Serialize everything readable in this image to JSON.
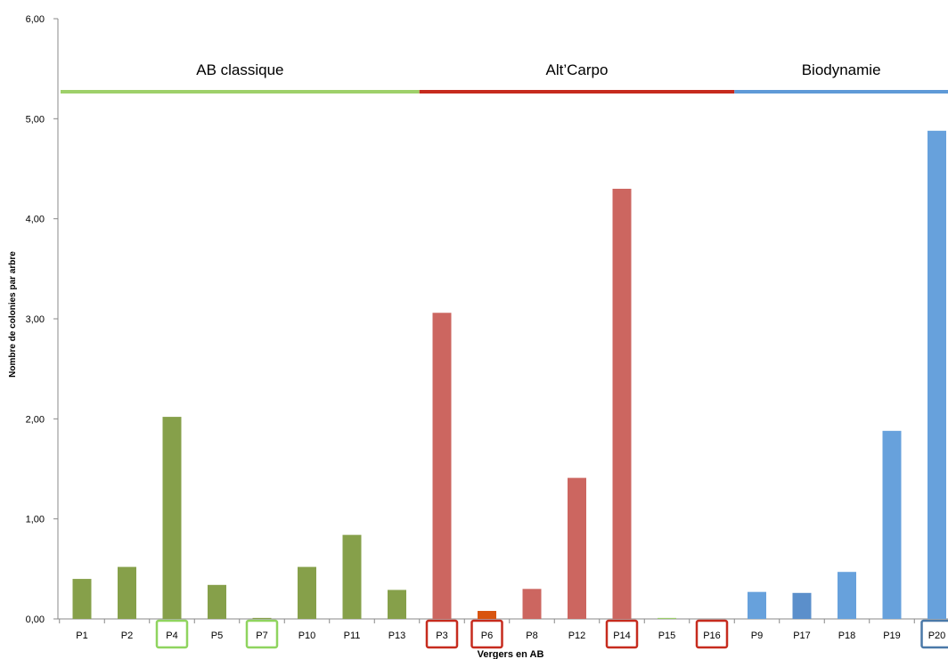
{
  "chart_data": {
    "type": "bar",
    "xlabel": "Vergers en AB",
    "ylabel": "Nombre de colonies par arbre",
    "ylim": [
      0,
      6
    ],
    "yticks": [
      "0,00",
      "1,00",
      "2,00",
      "3,00",
      "4,00",
      "5,00",
      "6,00"
    ],
    "categories": [
      "P1",
      "P2",
      "P4",
      "P5",
      "P7",
      "P10",
      "P11",
      "P13",
      "P3",
      "P6",
      "P8",
      "P12",
      "P14",
      "P15",
      "P16",
      "P9",
      "P17",
      "P18",
      "P19",
      "P20"
    ],
    "values": [
      0.4,
      0.52,
      2.02,
      0.34,
      0.01,
      0.52,
      0.84,
      0.29,
      3.06,
      0.08,
      0.3,
      1.41,
      4.3,
      0.01,
      0.0,
      0.27,
      0.26,
      0.47,
      1.88,
      4.88
    ],
    "bar_colors": [
      "#86a04a",
      "#86a04a",
      "#86a04a",
      "#86a04a",
      "#86a04a",
      "#86a04a",
      "#86a04a",
      "#86a04a",
      "#cc6660",
      "#d9540f",
      "#cc6660",
      "#cc6660",
      "#cc6660",
      "#9acb6a",
      "#cc6660",
      "#67a1dc",
      "#5b8fcb",
      "#67a1dc",
      "#67a1dc",
      "#67a1dc"
    ],
    "boxed_labels": [
      {
        "category": "P4",
        "color": "#8fd45f"
      },
      {
        "category": "P7",
        "color": "#8fd45f"
      },
      {
        "category": "P3",
        "color": "#c62b1e"
      },
      {
        "category": "P6",
        "color": "#c62b1e"
      },
      {
        "category": "P14",
        "color": "#c62b1e"
      },
      {
        "category": "P16",
        "color": "#c62b1e"
      },
      {
        "category": "P20",
        "color": "#4a79a8"
      }
    ],
    "groups": [
      {
        "name": "AB classique",
        "color": "#9ed06a",
        "from": "P1",
        "to": "P13"
      },
      {
        "name": "Alt’Carpo",
        "color": "#c62b1e",
        "from": "P3",
        "to": "P16"
      },
      {
        "name": "Biodynamie",
        "color": "#5f9ad7",
        "from": "P9",
        "to": "P20"
      }
    ],
    "grid": false
  }
}
